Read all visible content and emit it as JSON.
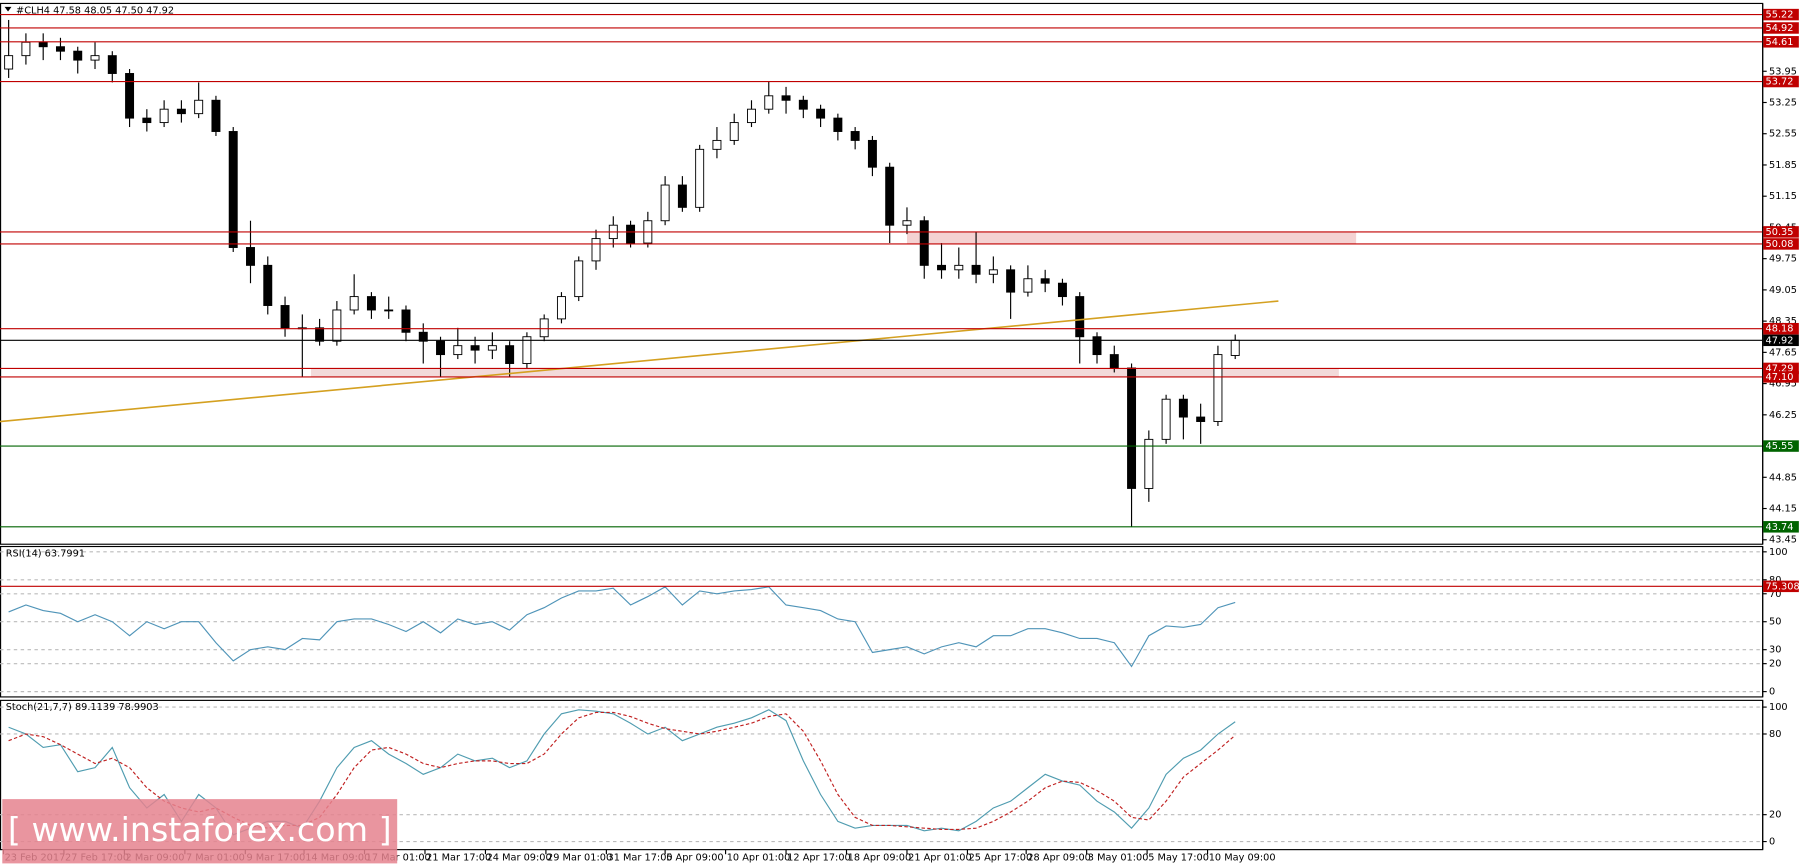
{
  "chart_data": [
    {
      "type": "candlestick",
      "title": "#CLH4  47.58 48.05 47.50 47.92",
      "xlim": [
        -0.5,
        101.5
      ],
      "xticks": [
        {
          "value": -0.3,
          "label": "23 Feb 2017"
        },
        {
          "value": 3.2,
          "label": "27 Feb 17:00"
        },
        {
          "value": 6.7,
          "label": "2 Mar 09:00"
        },
        {
          "value": 10.2,
          "label": "7 Mar 01:00"
        },
        {
          "value": 13.7,
          "label": "9 Mar 17:00"
        },
        {
          "value": 17.1,
          "label": "14 Mar 09:00"
        },
        {
          "value": 20.6,
          "label": "17 Mar 01:00"
        },
        {
          "value": 24.1,
          "label": "21 Mar 17:00"
        },
        {
          "value": 27.6,
          "label": "24 Mar 09:00"
        },
        {
          "value": 31.1,
          "label": "29 Mar 01:00"
        },
        {
          "value": 34.6,
          "label": "31 Mar 17:00"
        },
        {
          "value": 38.0,
          "label": "5 Apr 09:00"
        },
        {
          "value": 41.5,
          "label": "10 Apr 01:00"
        },
        {
          "value": 45.0,
          "label": "12 Apr 17:00"
        },
        {
          "value": 48.5,
          "label": "18 Apr 09:00"
        },
        {
          "value": 52.0,
          "label": "21 Apr 01:00"
        },
        {
          "value": 55.5,
          "label": "25 Apr 17:00"
        },
        {
          "value": 58.9,
          "label": "28 Apr 09:00"
        },
        {
          "value": 62.4,
          "label": "3 May 01:00"
        },
        {
          "value": 65.9,
          "label": "5 May 17:00"
        },
        {
          "value": 69.4,
          "label": "10 May 09:00"
        }
      ],
      "ylim": [
        43.35,
        55.47
      ],
      "yticks": [
        53.95,
        53.25,
        52.55,
        51.85,
        51.15,
        50.45,
        49.75,
        49.05,
        48.35,
        47.65,
        46.95,
        46.25,
        45.55,
        44.85,
        44.15,
        43.45
      ],
      "grid": false,
      "ohlc": [
        [
          54.0,
          55.1,
          53.8,
          54.3
        ],
        [
          54.3,
          54.8,
          54.1,
          54.6
        ],
        [
          54.6,
          54.8,
          54.2,
          54.5
        ],
        [
          54.5,
          54.7,
          54.2,
          54.4
        ],
        [
          54.4,
          54.5,
          53.9,
          54.2
        ],
        [
          54.2,
          54.6,
          54.0,
          54.3
        ],
        [
          54.3,
          54.4,
          53.7,
          53.9
        ],
        [
          53.9,
          54.0,
          52.7,
          52.9
        ],
        [
          52.9,
          53.1,
          52.6,
          52.8
        ],
        [
          52.8,
          53.3,
          52.7,
          53.1
        ],
        [
          53.1,
          53.3,
          52.8,
          53.0
        ],
        [
          53.0,
          53.7,
          52.9,
          53.3
        ],
        [
          53.3,
          53.4,
          52.5,
          52.6
        ],
        [
          52.6,
          52.7,
          49.9,
          50.0
        ],
        [
          50.0,
          50.6,
          49.2,
          49.6
        ],
        [
          49.6,
          49.8,
          48.5,
          48.7
        ],
        [
          48.7,
          48.9,
          48.0,
          48.2
        ],
        [
          48.2,
          48.5,
          47.1,
          48.2
        ],
        [
          48.2,
          48.4,
          47.8,
          47.9
        ],
        [
          47.9,
          48.8,
          47.8,
          48.6
        ],
        [
          48.6,
          49.4,
          48.5,
          48.9
        ],
        [
          48.9,
          49.0,
          48.4,
          48.6
        ],
        [
          48.6,
          48.9,
          48.4,
          48.6
        ],
        [
          48.6,
          48.7,
          47.9,
          48.1
        ],
        [
          48.1,
          48.3,
          47.4,
          47.9
        ],
        [
          47.9,
          48.0,
          47.1,
          47.6
        ],
        [
          47.6,
          48.2,
          47.5,
          47.8
        ],
        [
          47.8,
          48.0,
          47.4,
          47.7
        ],
        [
          47.7,
          48.1,
          47.5,
          47.8
        ],
        [
          47.8,
          47.9,
          47.1,
          47.4
        ],
        [
          47.4,
          48.1,
          47.3,
          48.0
        ],
        [
          48.0,
          48.5,
          47.9,
          48.4
        ],
        [
          48.4,
          49.0,
          48.3,
          48.9
        ],
        [
          48.9,
          49.8,
          48.8,
          49.7
        ],
        [
          49.7,
          50.4,
          49.5,
          50.2
        ],
        [
          50.2,
          50.7,
          50.0,
          50.5
        ],
        [
          50.5,
          50.6,
          50.0,
          50.1
        ],
        [
          50.1,
          50.8,
          50.0,
          50.6
        ],
        [
          50.6,
          51.6,
          50.5,
          51.4
        ],
        [
          51.4,
          51.6,
          50.8,
          50.9
        ],
        [
          50.9,
          52.3,
          50.8,
          52.2
        ],
        [
          52.2,
          52.7,
          52.0,
          52.4
        ],
        [
          52.4,
          53.0,
          52.3,
          52.8
        ],
        [
          52.8,
          53.3,
          52.7,
          53.1
        ],
        [
          53.1,
          53.72,
          53.0,
          53.4
        ],
        [
          53.4,
          53.6,
          53.0,
          53.3
        ],
        [
          53.3,
          53.4,
          52.9,
          53.1
        ],
        [
          53.1,
          53.2,
          52.7,
          52.9
        ],
        [
          52.9,
          53.0,
          52.4,
          52.6
        ],
        [
          52.6,
          52.7,
          52.2,
          52.4
        ],
        [
          52.4,
          52.5,
          51.6,
          51.8
        ],
        [
          51.8,
          51.9,
          50.1,
          50.5
        ],
        [
          50.5,
          50.9,
          50.3,
          50.6
        ],
        [
          50.6,
          50.7,
          49.3,
          49.6
        ],
        [
          49.6,
          50.1,
          49.3,
          49.5
        ],
        [
          49.5,
          50.0,
          49.3,
          49.6
        ],
        [
          49.6,
          50.35,
          49.2,
          49.4
        ],
        [
          49.4,
          49.8,
          49.2,
          49.5
        ],
        [
          49.5,
          49.6,
          48.4,
          49.0
        ],
        [
          49.0,
          49.6,
          48.9,
          49.3
        ],
        [
          49.3,
          49.5,
          49.0,
          49.2
        ],
        [
          49.2,
          49.3,
          48.7,
          48.9
        ],
        [
          48.9,
          49.0,
          47.4,
          48.0
        ],
        [
          48.0,
          48.1,
          47.4,
          47.6
        ],
        [
          47.6,
          47.8,
          47.2,
          47.3
        ],
        [
          47.3,
          47.4,
          43.74,
          44.6
        ],
        [
          44.6,
          45.9,
          44.3,
          45.7
        ],
        [
          45.7,
          46.7,
          45.6,
          46.6
        ],
        [
          46.6,
          46.7,
          45.7,
          46.2
        ],
        [
          46.2,
          46.5,
          45.6,
          46.1
        ],
        [
          46.1,
          47.8,
          46.0,
          47.6
        ],
        [
          47.58,
          48.05,
          47.5,
          47.92
        ]
      ],
      "zones": [
        {
          "x": [
            52,
            78
          ],
          "y": [
            50.08,
            50.35
          ],
          "color": "#f4d2d2"
        },
        {
          "x": [
            17.5,
            77
          ],
          "y": [
            47.1,
            47.29
          ],
          "color": "#f2dada"
        }
      ],
      "trendline": {
        "x": [
          -0.5,
          73.5
        ],
        "y": [
          46.1,
          48.8
        ],
        "color": "#d4a020"
      },
      "levels": [
        {
          "value": 55.22,
          "color": "#c00000"
        },
        {
          "value": 54.92,
          "color": "#c00000"
        },
        {
          "value": 54.61,
          "color": "#c00000"
        },
        {
          "value": 53.72,
          "color": "#c00000"
        },
        {
          "value": 50.35,
          "color": "#c00000"
        },
        {
          "value": 50.08,
          "color": "#c00000"
        },
        {
          "value": 48.18,
          "color": "#c00000"
        },
        {
          "value": 47.92,
          "color": "#000000"
        },
        {
          "value": 47.29,
          "color": "#c00000"
        },
        {
          "value": {
            "value": 47.1,
            "label": "47.10"
          },
          "color": "#c00000"
        },
        {
          "value": 45.55,
          "color": "#006400"
        },
        {
          "value": 43.74,
          "color": "#006400"
        }
      ]
    },
    {
      "type": "line",
      "title": "RSI(14) 63.7991",
      "ylim": [
        -3.8,
        103.8
      ],
      "yticks": [
        100,
        80,
        70,
        50,
        30,
        20,
        0
      ],
      "grid": true,
      "levels": [
        {
          "value": 75.3086,
          "color": "#c00000"
        }
      ],
      "series": [
        {
          "color": "#4f94b8",
          "dash": false,
          "values": [
            57,
            62,
            58,
            56,
            50,
            55,
            50,
            40,
            50,
            45,
            50,
            50,
            35,
            22,
            30,
            32,
            30,
            38,
            37,
            50,
            52,
            52,
            48,
            43,
            50,
            42,
            52,
            48,
            50,
            44,
            55,
            60,
            67,
            72,
            72,
            74,
            62,
            68,
            75,
            62,
            72,
            70,
            72,
            73,
            75,
            62,
            60,
            58,
            52,
            50,
            28,
            30,
            32,
            27,
            32,
            35,
            32,
            40,
            40,
            45,
            45,
            42,
            38,
            38,
            35,
            18,
            40,
            47,
            46,
            48,
            60,
            63.7991
          ]
        }
      ]
    },
    {
      "type": "line",
      "title": "Stoch(21,7,7) 89.1139 78.9903",
      "ylim": [
        -6,
        105
      ],
      "yticks": [
        100,
        80,
        20,
        0
      ],
      "grid": true,
      "series": [
        {
          "color": "#4f9cb0",
          "dash": false,
          "values": [
            85,
            80,
            70,
            72,
            52,
            55,
            70,
            40,
            25,
            35,
            15,
            35,
            25,
            5,
            10,
            15,
            15,
            10,
            30,
            55,
            70,
            75,
            65,
            58,
            50,
            55,
            65,
            60,
            62,
            55,
            60,
            80,
            95,
            98,
            97,
            95,
            88,
            80,
            85,
            75,
            80,
            85,
            88,
            92,
            98,
            90,
            60,
            35,
            15,
            10,
            12,
            12,
            12,
            8,
            10,
            8,
            15,
            25,
            30,
            40,
            50,
            45,
            42,
            30,
            22,
            10,
            25,
            50,
            62,
            68,
            80,
            89.1139
          ]
        },
        {
          "color": "#c02020",
          "dash": true,
          "values": [
            75,
            80,
            78,
            72,
            65,
            58,
            62,
            55,
            40,
            30,
            25,
            22,
            25,
            18,
            12,
            10,
            12,
            12,
            18,
            35,
            55,
            68,
            70,
            65,
            58,
            55,
            58,
            60,
            60,
            58,
            58,
            65,
            80,
            92,
            96,
            96,
            93,
            88,
            84,
            82,
            80,
            82,
            85,
            88,
            93,
            95,
            82,
            60,
            35,
            18,
            12,
            12,
            11,
            10,
            9,
            9,
            10,
            15,
            22,
            30,
            40,
            45,
            44,
            38,
            30,
            18,
            16,
            30,
            48,
            58,
            68,
            78.9903
          ]
        }
      ]
    }
  ],
  "watermark": "[ www.instaforex.com ]"
}
